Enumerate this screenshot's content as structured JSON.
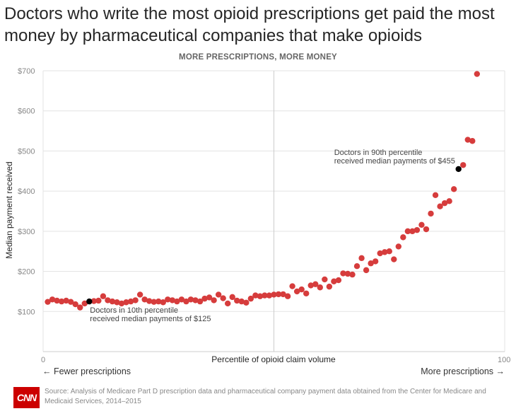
{
  "headline": "Doctors who write the most opioid prescriptions get paid the most money by pharmaceutical companies that make opioids",
  "footer": {
    "logo_text": "CNN",
    "source": "Source: Analysis of Medicare Part D prescription data and pharmaceutical company payment data obtained from the Center for Medicare and Medicaid Services, 2014–2015"
  },
  "chart_data": {
    "type": "scatter",
    "title": "MORE PRESCRIPTIONS, MORE MONEY",
    "xlabel": "Percentile of opioid claim volume",
    "ylabel": "Median payment received",
    "xlim": [
      0,
      100
    ],
    "ylim": [
      0,
      700
    ],
    "x_ticks": [
      "0",
      "100"
    ],
    "y_ticks": [
      "$100",
      "$200",
      "$300",
      "$400",
      "$500",
      "$600",
      "$700"
    ],
    "y_tick_values": [
      100,
      200,
      300,
      400,
      500,
      600,
      700
    ],
    "x_direction_labels": {
      "left": "← Fewer prescriptions",
      "right": "More prescriptions →"
    },
    "colors": {
      "points": "#d63c3c",
      "highlight": "#000000",
      "grid": "#e3e3e3",
      "midline": "#cccccc"
    },
    "x": [
      1,
      2,
      3,
      4,
      5,
      6,
      7,
      8,
      9,
      10,
      11,
      12,
      13,
      14,
      15,
      16,
      17,
      18,
      19,
      20,
      21,
      22,
      23,
      24,
      25,
      26,
      27,
      28,
      29,
      30,
      31,
      32,
      33,
      34,
      35,
      36,
      37,
      38,
      39,
      40,
      41,
      42,
      43,
      44,
      45,
      46,
      47,
      48,
      49,
      50,
      51,
      52,
      53,
      54,
      55,
      56,
      57,
      58,
      59,
      60,
      61,
      62,
      63,
      64,
      65,
      66,
      67,
      68,
      69,
      70,
      71,
      72,
      73,
      74,
      75,
      76,
      77,
      78,
      79,
      80,
      81,
      82,
      83,
      84,
      85,
      86,
      87,
      88,
      89,
      90,
      91,
      92,
      93,
      94
    ],
    "y": [
      124,
      130,
      127,
      125,
      127,
      124,
      118,
      110,
      120,
      125,
      126,
      127,
      138,
      128,
      125,
      123,
      120,
      123,
      125,
      128,
      142,
      130,
      126,
      124,
      125,
      123,
      130,
      128,
      125,
      130,
      125,
      130,
      128,
      125,
      132,
      135,
      128,
      142,
      133,
      120,
      136,
      127,
      125,
      122,
      132,
      140,
      138,
      140,
      140,
      142,
      143,
      143,
      138,
      163,
      150,
      155,
      145,
      165,
      168,
      160,
      180,
      162,
      175,
      178,
      195,
      194,
      192,
      213,
      233,
      203,
      220,
      225,
      245,
      248,
      250,
      230,
      262,
      285,
      300,
      300,
      303,
      316,
      305,
      344,
      390,
      362,
      370,
      375,
      405,
      455,
      465,
      528,
      525,
      692
    ],
    "highlights": [
      {
        "x": 10,
        "y": 125,
        "label": [
          "Doctors in 10th percentile",
          "received median payments of $125"
        ]
      },
      {
        "x": 90,
        "y": 455,
        "label": [
          "Doctors in 90th percentile",
          "received median payments of $455"
        ]
      }
    ]
  }
}
